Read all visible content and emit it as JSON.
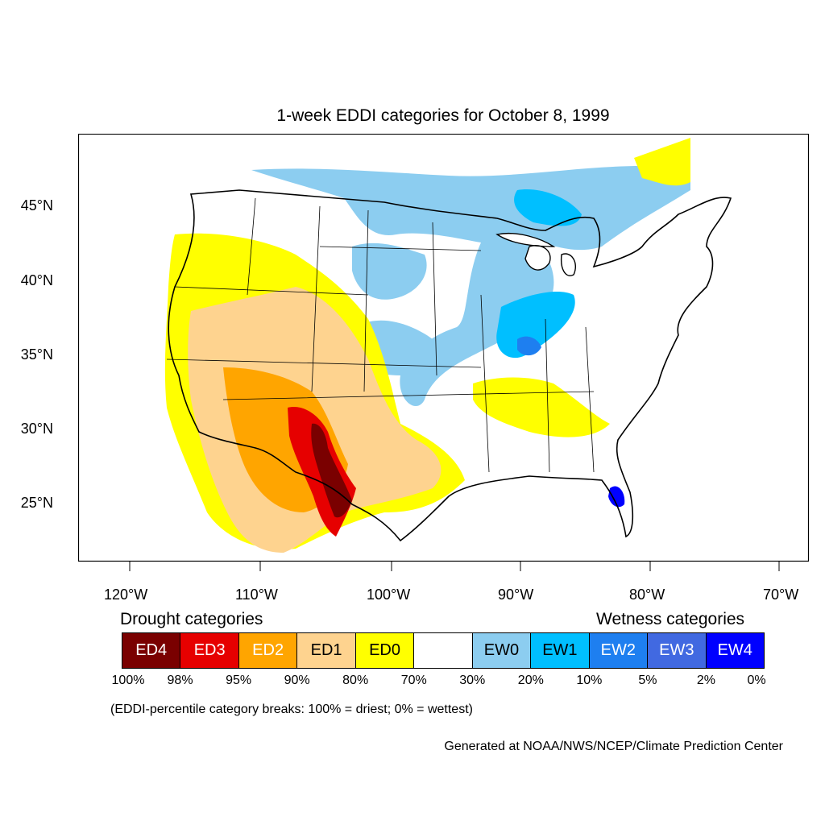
{
  "map": {
    "title": "1-week EDDI categories for October 8, 1999",
    "lat_labels": [
      "45°N",
      "40°N",
      "35°N",
      "30°N",
      "25°N"
    ],
    "lon_labels": [
      "120°W",
      "110°W",
      "100°W",
      "90°W",
      "80°W",
      "70°W"
    ]
  },
  "legend": {
    "drought_heading": "Drought categories",
    "wetness_heading": "Wetness categories",
    "categories": [
      {
        "label": "ED4",
        "color": "#7a0000",
        "text_color": "#ffffff"
      },
      {
        "label": "ED3",
        "color": "#e60000",
        "text_color": "#ffffff"
      },
      {
        "label": "ED2",
        "color": "#ffa500",
        "text_color": "#ffffff"
      },
      {
        "label": "ED1",
        "color": "#fed38f",
        "text_color": "#000000"
      },
      {
        "label": "ED0",
        "color": "#ffff00",
        "text_color": "#000000"
      },
      {
        "label": "",
        "color": "#ffffff",
        "text_color": "#000000"
      },
      {
        "label": "EW0",
        "color": "#8ccdf0",
        "text_color": "#000000"
      },
      {
        "label": "EW1",
        "color": "#00bfff",
        "text_color": "#000000"
      },
      {
        "label": "EW2",
        "color": "#1e7ff0",
        "text_color": "#ffffff"
      },
      {
        "label": "EW3",
        "color": "#4169e1",
        "text_color": "#ffffff"
      },
      {
        "label": "EW4",
        "color": "#0000ff",
        "text_color": "#ffffff"
      }
    ],
    "breaks": [
      "100%",
      "98%",
      "95%",
      "90%",
      "80%",
      "70%",
      "30%",
      "20%",
      "10%",
      "5%",
      "2%",
      "0%"
    ],
    "note": "(EDDI-percentile category breaks: 100% = driest; 0% = wettest)"
  },
  "credit": "Generated at NOAA/NWS/NCEP/Climate Prediction Center"
}
